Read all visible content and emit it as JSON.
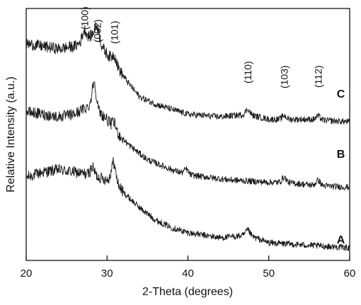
{
  "chart_data": {
    "type": "line",
    "title": "",
    "xlabel": "2-Theta (degrees)",
    "ylabel": "Relative Intensity (a.u.)",
    "xlim": [
      20,
      60
    ],
    "ylim": [
      0,
      1
    ],
    "xticks": [
      20,
      30,
      40,
      50,
      60
    ],
    "x_tick_labels": [
      "20",
      "30",
      "40",
      "50",
      "60"
    ],
    "y_ticks_shown": false,
    "legend": "none",
    "annotations": [
      {
        "text": "(100)",
        "x": 27.2
      },
      {
        "text": "(002)",
        "x": 28.8
      },
      {
        "text": "(101)",
        "x": 30.9
      },
      {
        "text": "(110)",
        "x": 47.4
      },
      {
        "text": "(103)",
        "x": 51.9
      },
      {
        "text": "(112)",
        "x": 56.1
      }
    ],
    "series": [
      {
        "name": "A",
        "label_at_x": 58.4,
        "x": [
          20,
          22,
          24,
          26,
          28,
          29,
          30,
          30.8,
          32,
          34,
          36,
          38,
          40,
          44,
          47.5,
          50,
          55,
          60
        ],
        "values": [
          0.33,
          0.35,
          0.36,
          0.35,
          0.34,
          0.33,
          0.32,
          0.33,
          0.27,
          0.21,
          0.16,
          0.13,
          0.11,
          0.09,
          0.1,
          0.07,
          0.06,
          0.05
        ],
        "peaks": [
          [
            30.8,
            0.06
          ],
          [
            47.4,
            0.02
          ],
          [
            28.2,
            0.03
          ]
        ]
      },
      {
        "name": "B",
        "label_at_x": 58.4,
        "x": [
          20,
          22,
          24,
          26,
          27,
          28.4,
          29,
          30,
          31,
          33,
          35,
          38,
          40,
          45,
          50,
          52,
          55,
          60
        ],
        "values": [
          0.59,
          0.58,
          0.57,
          0.58,
          0.6,
          0.62,
          0.59,
          0.56,
          0.51,
          0.45,
          0.4,
          0.36,
          0.34,
          0.32,
          0.31,
          0.31,
          0.3,
          0.29
        ],
        "peaks": [
          [
            28.4,
            0.09
          ],
          [
            30.9,
            0.03
          ],
          [
            51.9,
            0.02
          ],
          [
            56.1,
            0.02
          ],
          [
            39.8,
            0.02
          ]
        ]
      },
      {
        "name": "C",
        "label_at_x": 58.4,
        "x": [
          20,
          22,
          24,
          26,
          27,
          28.4,
          29.5,
          31,
          32.5,
          34,
          36,
          38,
          40,
          44,
          47.4,
          50,
          55,
          60
        ],
        "values": [
          0.86,
          0.85,
          0.84,
          0.85,
          0.87,
          0.9,
          0.84,
          0.78,
          0.71,
          0.65,
          0.62,
          0.6,
          0.58,
          0.57,
          0.58,
          0.56,
          0.56,
          0.55
        ],
        "peaks": [
          [
            27.2,
            0.04
          ],
          [
            28.8,
            0.05
          ],
          [
            30.9,
            0.03
          ],
          [
            47.4,
            0.02
          ],
          [
            51.9,
            0.015
          ],
          [
            56.1,
            0.015
          ]
        ]
      }
    ]
  }
}
